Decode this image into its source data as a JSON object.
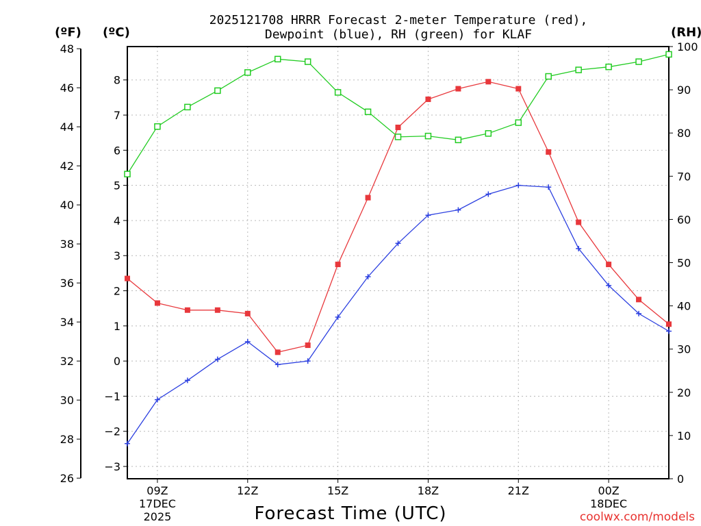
{
  "chart_data": {
    "type": "line",
    "title_line1": "2025121708 HRRR Forecast 2-meter Temperature (red),",
    "title_line2": "Dewpoint (blue), RH (green) for KLAF",
    "xlabel": "Forecast Time (UTC)",
    "credit": "coolwx.com/models",
    "units": {
      "left_f": "(ºF)",
      "left_c": "(ºC)",
      "right": "(RH)"
    },
    "x_hours": [
      8,
      9,
      10,
      11,
      12,
      13,
      14,
      15,
      16,
      17,
      18,
      19,
      20,
      21,
      22,
      23,
      24,
      25,
      26
    ],
    "xlim": [
      8,
      26
    ],
    "x_ticks": [
      {
        "hour": 9,
        "lines": [
          "09Z",
          "17DEC",
          "2025"
        ]
      },
      {
        "hour": 12,
        "lines": [
          "12Z"
        ]
      },
      {
        "hour": 15,
        "lines": [
          "15Z"
        ]
      },
      {
        "hour": 18,
        "lines": [
          "18Z"
        ]
      },
      {
        "hour": 21,
        "lines": [
          "21Z"
        ]
      },
      {
        "hour": 24,
        "lines": [
          "00Z",
          "18DEC"
        ]
      }
    ],
    "celsius_axis": {
      "ylim": [
        -3.35,
        8.95
      ],
      "ticks": [
        -3,
        -2,
        -1,
        0,
        1,
        2,
        3,
        4,
        5,
        6,
        7,
        8
      ]
    },
    "fahrenheit_axis": {
      "ticks": [
        26,
        28,
        30,
        32,
        34,
        36,
        38,
        40,
        42,
        44,
        46,
        48
      ]
    },
    "rh_axis": {
      "ylim": [
        0,
        100
      ],
      "ticks": [
        0,
        10,
        20,
        30,
        40,
        50,
        60,
        70,
        80,
        90,
        100
      ]
    },
    "series": [
      {
        "name": "Temperature",
        "axis": "celsius",
        "color": "#e8383c",
        "marker": "filled-square",
        "values": [
          2.35,
          1.65,
          1.45,
          1.45,
          1.35,
          0.25,
          0.45,
          2.75,
          4.65,
          6.65,
          7.45,
          7.75,
          7.95,
          7.75,
          5.95,
          3.95,
          2.75,
          1.75,
          1.05
        ]
      },
      {
        "name": "Dewpoint",
        "axis": "celsius",
        "color": "#2b3fe0",
        "marker": "plus",
        "values": [
          -2.35,
          -1.1,
          -0.55,
          0.05,
          0.55,
          -0.1,
          0.0,
          1.25,
          2.4,
          3.35,
          4.15,
          4.3,
          4.75,
          5.0,
          4.95,
          3.2,
          2.15,
          1.35,
          0.85
        ]
      },
      {
        "name": "RH",
        "axis": "rh",
        "color": "#22cc22",
        "marker": "open-square",
        "values": [
          70.5,
          81.5,
          86,
          89.8,
          94,
          97.1,
          96.5,
          89.4,
          84.9,
          79.1,
          79.3,
          78.4,
          79.9,
          82.4,
          93.1,
          94.6,
          95.3,
          96.5,
          98.2
        ]
      }
    ]
  }
}
